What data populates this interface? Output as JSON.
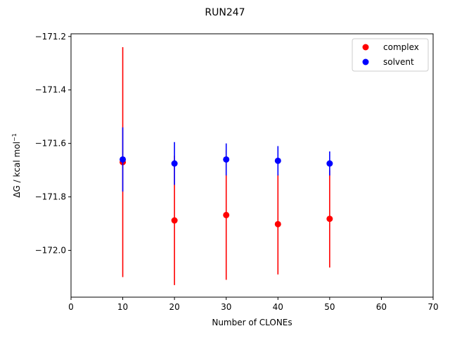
{
  "chart_data": {
    "type": "scatter",
    "title": "RUN247",
    "xlabel": "Number of CLONEs",
    "ylabel_main": "ΔG / kcal mol",
    "ylabel_sup": "−1",
    "xlim": [
      0,
      70
    ],
    "ylim": [
      -172.175,
      -171.19
    ],
    "xticks": [
      0,
      10,
      20,
      30,
      40,
      50,
      60,
      70
    ],
    "yticks": [
      -171.2,
      -171.4,
      -171.6,
      -171.8,
      -172.0
    ],
    "ytick_labels": [
      "−171.2",
      "−171.4",
      "−171.6",
      "−171.8",
      "−172.0"
    ],
    "legend_position": "top-right",
    "series": [
      {
        "name": "complex",
        "color": "#ff0000",
        "points": [
          {
            "x": 10,
            "y": -171.67,
            "err": 0.43
          },
          {
            "x": 20,
            "y": -171.888,
            "err": 0.242
          },
          {
            "x": 30,
            "y": -171.868,
            "err": 0.242
          },
          {
            "x": 40,
            "y": -171.902,
            "err": 0.188
          },
          {
            "x": 50,
            "y": -171.882,
            "err": 0.182
          }
        ]
      },
      {
        "name": "solvent",
        "color": "#0000ff",
        "points": [
          {
            "x": 10,
            "y": -171.66,
            "err": 0.12
          },
          {
            "x": 20,
            "y": -171.675,
            "err": 0.08
          },
          {
            "x": 30,
            "y": -171.66,
            "err": 0.06
          },
          {
            "x": 40,
            "y": -171.665,
            "err": 0.055
          },
          {
            "x": 50,
            "y": -171.675,
            "err": 0.045
          }
        ]
      }
    ]
  }
}
